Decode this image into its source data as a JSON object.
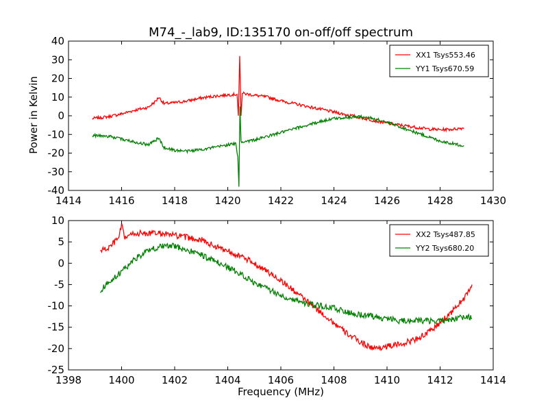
{
  "figure": {
    "title": "M74_-_lab9, ID:135170 on-off/off spectrum",
    "ylabel": "Power in Kelvin",
    "xlabel": "Frequency (MHz)",
    "background": "#ffffff"
  },
  "chart_data": [
    {
      "type": "line",
      "xlim": [
        1414,
        1430
      ],
      "ylim": [
        -40,
        40
      ],
      "xticks": [
        1414,
        1416,
        1418,
        1420,
        1422,
        1424,
        1426,
        1428,
        1430
      ],
      "yticks": [
        -40,
        -30,
        -20,
        -10,
        0,
        10,
        20,
        30,
        40
      ],
      "grid": false,
      "legend_position": "top-right",
      "series": [
        {
          "name": "XX1 Tsys553.46",
          "color": "#ff0000",
          "points": [
            [
              1414.9,
              -1.5
            ],
            [
              1415.5,
              -0.5
            ],
            [
              1416.0,
              1.0
            ],
            [
              1416.5,
              3.0
            ],
            [
              1417.0,
              4.5
            ],
            [
              1417.3,
              8.0
            ],
            [
              1417.4,
              10.0
            ],
            [
              1417.6,
              6.5
            ],
            [
              1418.0,
              7.0
            ],
            [
              1418.5,
              8.0
            ],
            [
              1419.0,
              9.5
            ],
            [
              1419.5,
              10.5
            ],
            [
              1420.0,
              11.2
            ],
            [
              1420.35,
              11.5
            ],
            [
              1420.4,
              0.0
            ],
            [
              1420.45,
              32.0
            ],
            [
              1420.5,
              0.0
            ],
            [
              1420.55,
              12.0
            ],
            [
              1421.0,
              11.0
            ],
            [
              1421.5,
              10.0
            ],
            [
              1422.0,
              8.0
            ],
            [
              1422.5,
              6.5
            ],
            [
              1423.0,
              5.0
            ],
            [
              1423.5,
              3.5
            ],
            [
              1424.0,
              2.0
            ],
            [
              1424.5,
              0.5
            ],
            [
              1425.0,
              -1.0
            ],
            [
              1425.5,
              -2.5
            ],
            [
              1426.0,
              -4.0
            ],
            [
              1426.5,
              -5.0
            ],
            [
              1427.0,
              -6.0
            ],
            [
              1427.5,
              -7.0
            ],
            [
              1428.0,
              -7.5
            ],
            [
              1428.5,
              -7.2
            ],
            [
              1428.9,
              -6.5
            ]
          ]
        },
        {
          "name": "YY1 Tsys670.59",
          "color": "#008000",
          "points": [
            [
              1414.9,
              -10.5
            ],
            [
              1415.5,
              -11.0
            ],
            [
              1416.0,
              -12.5
            ],
            [
              1416.5,
              -14.0
            ],
            [
              1417.0,
              -15.5
            ],
            [
              1417.3,
              -13.0
            ],
            [
              1417.4,
              -12.0
            ],
            [
              1417.6,
              -17.0
            ],
            [
              1418.0,
              -18.5
            ],
            [
              1418.5,
              -19.0
            ],
            [
              1419.0,
              -18.0
            ],
            [
              1419.5,
              -17.0
            ],
            [
              1420.0,
              -15.5
            ],
            [
              1420.3,
              -15.0
            ],
            [
              1420.38,
              -22.0
            ],
            [
              1420.42,
              -38.0
            ],
            [
              1420.46,
              5.0
            ],
            [
              1420.5,
              -14.0
            ],
            [
              1421.0,
              -13.0
            ],
            [
              1421.5,
              -11.0
            ],
            [
              1422.0,
              -9.0
            ],
            [
              1422.5,
              -7.0
            ],
            [
              1423.0,
              -5.0
            ],
            [
              1423.5,
              -3.0
            ],
            [
              1424.0,
              -1.5
            ],
            [
              1424.5,
              -0.8
            ],
            [
              1425.0,
              -0.5
            ],
            [
              1425.5,
              -1.5
            ],
            [
              1426.0,
              -3.5
            ],
            [
              1426.5,
              -6.0
            ],
            [
              1427.0,
              -8.5
            ],
            [
              1427.5,
              -11.0
            ],
            [
              1428.0,
              -13.5
            ],
            [
              1428.5,
              -15.0
            ],
            [
              1428.9,
              -16.0
            ]
          ]
        }
      ]
    },
    {
      "type": "line",
      "xlim": [
        1398,
        1414
      ],
      "ylim": [
        -25,
        10
      ],
      "xticks": [
        1398,
        1400,
        1402,
        1404,
        1406,
        1408,
        1410,
        1412,
        1414
      ],
      "yticks": [
        -25,
        -20,
        -15,
        -10,
        -5,
        0,
        5,
        10
      ],
      "grid": false,
      "legend_position": "top-right",
      "series": [
        {
          "name": "XX2 Tsys487.85",
          "color": "#ff0000",
          "points": [
            [
              1399.2,
              3.0
            ],
            [
              1399.5,
              3.5
            ],
            [
              1399.9,
              6.0
            ],
            [
              1400.0,
              9.0
            ],
            [
              1400.1,
              6.0
            ],
            [
              1400.5,
              7.0
            ],
            [
              1401.0,
              7.0
            ],
            [
              1401.5,
              7.0
            ],
            [
              1402.0,
              6.5
            ],
            [
              1402.5,
              6.0
            ],
            [
              1403.0,
              5.5
            ],
            [
              1403.5,
              4.0
            ],
            [
              1404.0,
              3.0
            ],
            [
              1404.5,
              1.5
            ],
            [
              1405.0,
              0.0
            ],
            [
              1405.5,
              -2.0
            ],
            [
              1406.0,
              -4.0
            ],
            [
              1406.5,
              -6.5
            ],
            [
              1407.0,
              -9.0
            ],
            [
              1407.5,
              -11.5
            ],
            [
              1408.0,
              -14.0
            ],
            [
              1408.5,
              -16.5
            ],
            [
              1409.0,
              -18.5
            ],
            [
              1409.5,
              -20.0
            ],
            [
              1410.0,
              -19.5
            ],
            [
              1410.5,
              -19.0
            ],
            [
              1411.0,
              -18.0
            ],
            [
              1411.5,
              -16.5
            ],
            [
              1412.0,
              -14.0
            ],
            [
              1412.5,
              -11.0
            ],
            [
              1413.0,
              -7.5
            ],
            [
              1413.2,
              -5.0
            ]
          ]
        },
        {
          "name": "YY2 Tsys680.20",
          "color": "#008000",
          "points": [
            [
              1399.2,
              -6.5
            ],
            [
              1399.5,
              -4.5
            ],
            [
              1400.0,
              -2.0
            ],
            [
              1400.5,
              1.0
            ],
            [
              1401.0,
              3.0
            ],
            [
              1401.5,
              4.0
            ],
            [
              1402.0,
              4.0
            ],
            [
              1402.5,
              3.0
            ],
            [
              1403.0,
              2.0
            ],
            [
              1403.5,
              0.5
            ],
            [
              1404.0,
              -1.0
            ],
            [
              1404.5,
              -2.5
            ],
            [
              1405.0,
              -4.5
            ],
            [
              1405.5,
              -6.0
            ],
            [
              1406.0,
              -7.5
            ],
            [
              1406.5,
              -8.5
            ],
            [
              1407.0,
              -9.5
            ],
            [
              1407.5,
              -10.0
            ],
            [
              1408.0,
              -10.5
            ],
            [
              1408.5,
              -11.5
            ],
            [
              1409.0,
              -12.0
            ],
            [
              1409.5,
              -12.5
            ],
            [
              1410.0,
              -13.0
            ],
            [
              1410.5,
              -13.5
            ],
            [
              1411.0,
              -13.5
            ],
            [
              1411.5,
              -13.5
            ],
            [
              1412.0,
              -13.5
            ],
            [
              1412.5,
              -13.0
            ],
            [
              1413.0,
              -12.5
            ],
            [
              1413.2,
              -13.0
            ]
          ]
        }
      ]
    }
  ]
}
